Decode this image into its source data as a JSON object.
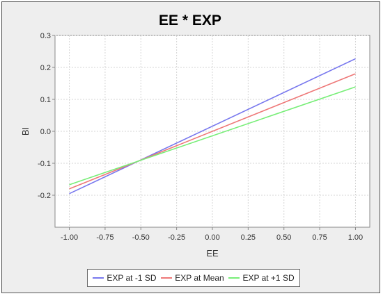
{
  "chart_data": {
    "type": "line",
    "title": "EE * EXP",
    "xlabel": "EE",
    "ylabel": "BI",
    "xlim": [
      -1.1,
      1.1
    ],
    "ylim": [
      -0.3,
      0.3
    ],
    "x_ticks": [
      "-1.00",
      "-0.75",
      "-0.50",
      "-0.25",
      "0.00",
      "0.25",
      "0.50",
      "0.75",
      "1.00"
    ],
    "y_ticks": [
      "0.3",
      "0.2",
      "0.1",
      "0.0",
      "-0.1",
      "-0.2"
    ],
    "grid": true,
    "legend_position": "bottom",
    "series": [
      {
        "name": "EXP at -1 SD",
        "color": "#7777ee",
        "x": [
          -1.0,
          1.0
        ],
        "y": [
          -0.195,
          0.227
        ]
      },
      {
        "name": "EXP at Mean",
        "color": "#ee7777",
        "x": [
          -1.0,
          1.0
        ],
        "y": [
          -0.18,
          0.18
        ]
      },
      {
        "name": "EXP at +1 SD",
        "color": "#77ee77",
        "x": [
          -1.0,
          1.0
        ],
        "y": [
          -0.167,
          0.139
        ]
      }
    ]
  }
}
